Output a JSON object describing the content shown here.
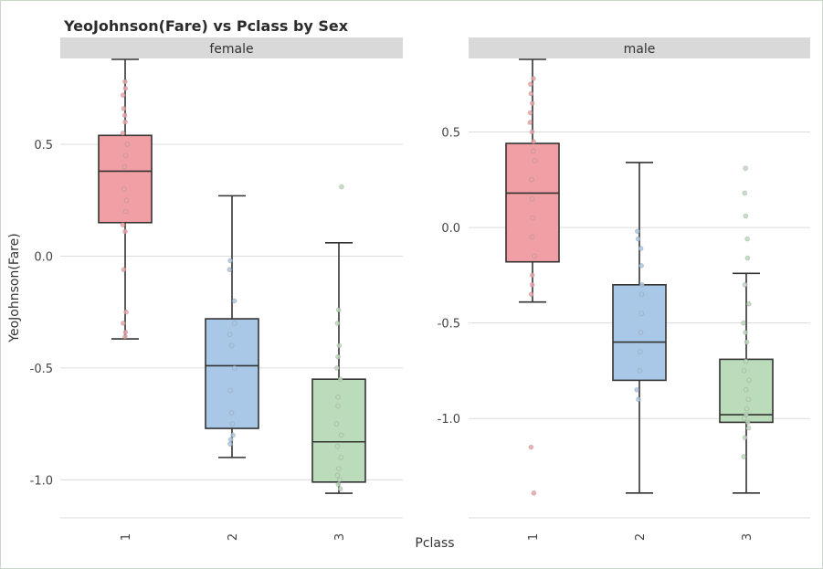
{
  "chart_data": {
    "type": "box",
    "title": "YeoJohnson(Fare) vs Pclass by Sex",
    "xlabel": "Pclass",
    "ylabel": "YeoJohnson(Fare)",
    "categories": [
      "1",
      "2",
      "3"
    ],
    "colors": {
      "1": "#f0a0a4",
      "2": "#a9c8e8",
      "3": "#bbdcbb"
    },
    "panels": [
      {
        "name": "female",
        "ylim": [
          -1.17,
          0.88
        ],
        "yticks": [
          0.5,
          0.0,
          -0.5,
          -1.0
        ],
        "ytick_labels": [
          "0.5",
          "0.0",
          "-0.5",
          "-1.0"
        ],
        "boxes": [
          {
            "category": "1",
            "whisker_low": -0.37,
            "q1": 0.15,
            "median": 0.38,
            "q3": 0.54,
            "whisker_high": 0.88,
            "points": [
              0.78,
              0.75,
              0.72,
              0.66,
              0.63,
              0.6,
              0.55,
              0.5,
              0.45,
              0.4,
              0.3,
              0.25,
              0.2,
              0.14,
              0.11,
              -0.06,
              -0.25,
              -0.3,
              -0.34,
              -0.36
            ]
          },
          {
            "category": "2",
            "whisker_low": -0.9,
            "q1": -0.77,
            "median": -0.49,
            "q3": -0.28,
            "whisker_high": 0.27,
            "points": [
              -0.02,
              -0.06,
              -0.2,
              -0.3,
              -0.35,
              -0.4,
              -0.5,
              -0.6,
              -0.7,
              -0.75,
              -0.8,
              -0.82,
              -0.84
            ]
          },
          {
            "category": "3",
            "whisker_low": -1.06,
            "q1": -1.01,
            "median": -0.83,
            "q3": -0.55,
            "whisker_high": 0.06,
            "points": [
              0.31,
              -0.24,
              -0.3,
              -0.4,
              -0.45,
              -0.5,
              -0.55,
              -0.63,
              -0.67,
              -0.75,
              -0.8,
              -0.85,
              -0.9,
              -0.95,
              -0.98,
              -1.0,
              -1.02,
              -1.04
            ]
          }
        ]
      },
      {
        "name": "male",
        "ylim": [
          -1.52,
          0.88
        ],
        "yticks": [
          0.5,
          0.0,
          -0.5,
          -1.0
        ],
        "ytick_labels": [
          "0.5",
          "0.0",
          "-0.5",
          "-1.0"
        ],
        "boxes": [
          {
            "category": "1",
            "whisker_low": -0.39,
            "q1": -0.18,
            "median": 0.18,
            "q3": 0.44,
            "whisker_high": 0.88,
            "points": [
              0.78,
              0.75,
              0.7,
              0.65,
              0.6,
              0.55,
              0.5,
              0.45,
              0.4,
              0.35,
              0.25,
              0.15,
              0.05,
              -0.05,
              -0.15,
              -0.25,
              -0.3,
              -0.35,
              -1.15,
              -1.39
            ]
          },
          {
            "category": "2",
            "whisker_low": -1.39,
            "q1": -0.8,
            "median": -0.6,
            "q3": -0.3,
            "whisker_high": 0.34,
            "points": [
              -0.02,
              -0.06,
              -0.11,
              -0.2,
              -0.3,
              -0.35,
              -0.45,
              -0.55,
              -0.65,
              -0.75,
              -0.85,
              -0.9
            ]
          },
          {
            "category": "3",
            "whisker_low": -1.39,
            "q1": -1.02,
            "median": -0.98,
            "q3": -0.69,
            "whisker_high": -0.24,
            "points": [
              0.31,
              0.18,
              0.06,
              -0.06,
              -0.16,
              -0.3,
              -0.4,
              -0.5,
              -0.55,
              -0.6,
              -0.7,
              -0.75,
              -0.8,
              -0.85,
              -0.9,
              -0.95,
              -0.98,
              -1.0,
              -1.02,
              -1.05,
              -1.1,
              -1.2
            ]
          }
        ]
      }
    ]
  }
}
